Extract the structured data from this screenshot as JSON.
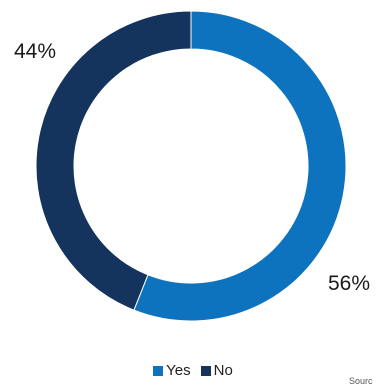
{
  "chart_data": {
    "type": "pie",
    "donut": true,
    "categories": [
      "Yes",
      "No"
    ],
    "values": [
      56,
      44
    ],
    "labels": [
      "56%",
      "44%"
    ],
    "colors": [
      "#0d73bf",
      "#14335d"
    ],
    "legend_placement": "bottom"
  },
  "legend": {
    "items": [
      {
        "label": "Yes",
        "color": "#0d73bf"
      },
      {
        "label": "No",
        "color": "#14335d"
      }
    ]
  },
  "source": "Sourc"
}
